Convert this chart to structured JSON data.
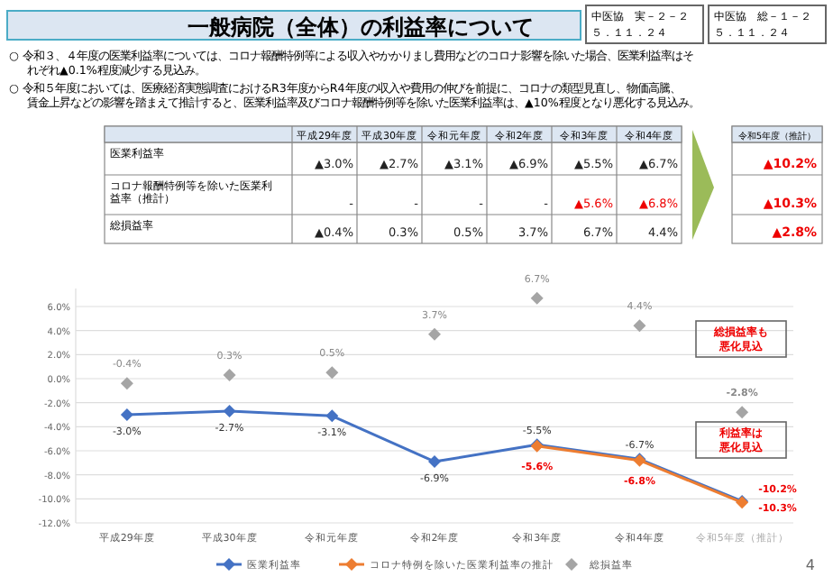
{
  "chart_data": [
    {
      "type": "other",
      "title": "一般病院（全体）の利益率について",
      "annotations": [
        "中医協　実－２－２",
        "５．１１．２４",
        "中医協　総－１－２",
        "５．１１．２４",
        "○ 令和３、４年度の医業利益率については、コロナ報酬特例等による収入やかかりまし費用などのコロナ影響を除いた場合、医業利益率はそれぞれ▲0.1%程度減少する見込み。",
        "○ 令和５年度においては、医療経済実態調査におけるR3年度からR4年度の収入や費用の伸びを前提に、コロナの類型見直し、物価高騰、賃金上昇などの影響を踏まえて推計すると、医業利益率及びコロナ報酬特例等を除いた医業利益率は、▲10%程度となり悪化する見込み。",
        "平成29年度",
        "平成30年度",
        "令和元年度",
        "令和2年度",
        "令和3年度",
        "令和4年度",
        "令和5年度（推計）",
        "医業利益率",
        "▲3.0%",
        "▲2.7%",
        "▲3.1%",
        "▲6.9%",
        "▲5.5%",
        "▲6.7%",
        "▲10.2%",
        "コロナ報酬特例等を除いた医業利益率（推計）",
        "-",
        "-",
        "-",
        "-",
        "▲5.6%",
        "▲6.8%",
        "▲10.3%",
        "総損益率",
        "▲0.4%",
        "0.3%",
        "0.5%",
        "3.7%",
        "6.7%",
        "4.4%",
        "▲2.8%"
      ]
    },
    {
      "type": "line",
      "categories": [
        "平成29年度",
        "平成30年度",
        "令和元年度",
        "令和2年度",
        "令和3年度",
        "令和4年度",
        "令和5年度（推計）"
      ],
      "series": [
        {
          "name": "医業利益率",
          "color": "#4472c4",
          "values": [
            -3.0,
            -2.7,
            -3.1,
            -6.9,
            -5.5,
            -6.7,
            -10.2
          ],
          "value_labels": [
            "-3.0%",
            "-2.7%",
            "-3.1%",
            "-6.9%",
            "-5.5%",
            "-6.7%",
            "-10.2%"
          ]
        },
        {
          "name": "コロナ特例を除いた医業利益率の推計",
          "color": "#ed7d31",
          "values": [
            null,
            null,
            null,
            null,
            -5.6,
            -6.8,
            -10.3
          ],
          "value_labels": [
            null,
            null,
            null,
            null,
            "-5.6%",
            "-6.8%",
            "-10.3%"
          ]
        },
        {
          "name": "総損益率",
          "type": "scatter",
          "color": "#a5a5a5",
          "values": [
            -0.4,
            0.3,
            0.5,
            3.7,
            6.7,
            4.4,
            -2.8
          ],
          "value_labels": [
            "-0.4%",
            "0.3%",
            "0.5%",
            "3.7%",
            "6.7%",
            "4.4%",
            "-2.8%"
          ]
        }
      ],
      "ylim": [
        -12,
        7.5
      ],
      "yticks": [
        {
          "value": -12,
          "label": "-12.0%"
        },
        {
          "value": -10,
          "label": "-10.0%"
        },
        {
          "value": -8,
          "label": "-8.0%"
        },
        {
          "value": -6,
          "label": "-6.0%"
        },
        {
          "value": -4,
          "label": "-4.0%"
        },
        {
          "value": -2,
          "label": "-2.0%"
        },
        {
          "value": 0,
          "label": "0.0%"
        },
        {
          "value": 2,
          "label": "2.0%"
        },
        {
          "value": 4,
          "label": "4.0%"
        },
        {
          "value": 6,
          "label": "6.0%"
        }
      ],
      "grid": "y",
      "legend": "bottom",
      "marker": "diamond",
      "line_style": "solid",
      "annotations": [
        "総損益率も悪化見込",
        "利益率は悪化見込",
        "4"
      ]
    }
  ]
}
